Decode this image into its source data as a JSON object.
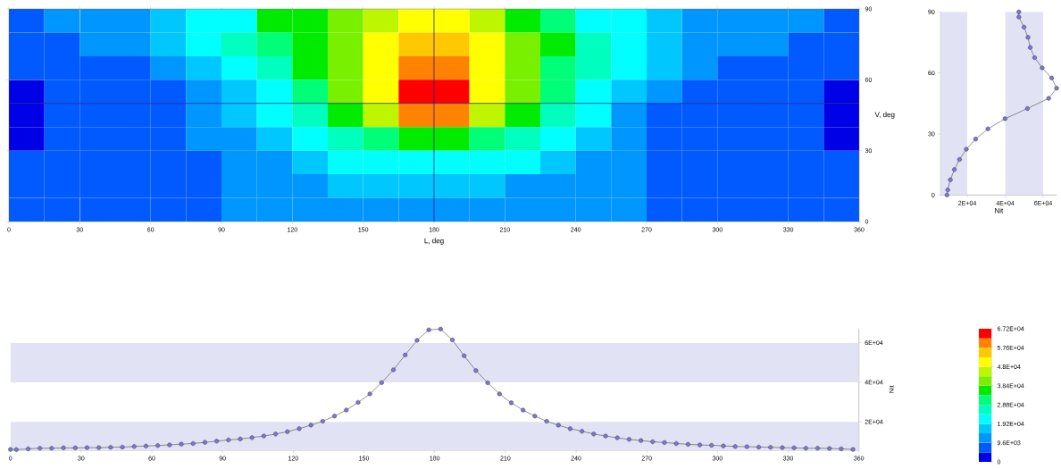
{
  "chart_data": [
    {
      "type": "heatmap",
      "xlabel": "L, deg",
      "ylabel": "V, deg",
      "x": [
        7.5,
        22.5,
        37.5,
        52.5,
        67.5,
        82.5,
        97.5,
        112.5,
        127.5,
        142.5,
        157.5,
        172.5,
        187.5,
        202.5,
        217.5,
        232.5,
        247.5,
        262.5,
        277.5,
        292.5,
        307.5,
        322.5,
        337.5,
        352.5
      ],
      "y": [
        85,
        75,
        65,
        55,
        45,
        35,
        25,
        15,
        5
      ],
      "cells": [
        [
          7200,
          12000,
          12000,
          12000,
          16800,
          21600,
          21600,
          36000,
          36000,
          40800,
          45600,
          50400,
          50400,
          45600,
          36000,
          31200,
          21600,
          21600,
          16800,
          12000,
          12000,
          12000,
          12000,
          7200
        ],
        [
          7200,
          7200,
          12000,
          12000,
          16800,
          21600,
          26400,
          31200,
          36000,
          40800,
          50400,
          55200,
          55200,
          50400,
          40800,
          36000,
          26400,
          21600,
          16800,
          12000,
          12000,
          12000,
          7200,
          7200
        ],
        [
          7200,
          7200,
          7200,
          7200,
          12000,
          16800,
          21600,
          26400,
          36000,
          40800,
          50400,
          60000,
          60000,
          50400,
          40800,
          31200,
          26400,
          21600,
          16800,
          12000,
          7200,
          7200,
          7200,
          7200
        ],
        [
          2400,
          7200,
          7200,
          7200,
          7200,
          12000,
          16800,
          21600,
          31200,
          40800,
          50400,
          64800,
          64800,
          50400,
          40800,
          31200,
          21600,
          16800,
          12000,
          7200,
          7200,
          7200,
          7200,
          2400
        ],
        [
          2400,
          7200,
          7200,
          7200,
          7200,
          12000,
          16800,
          21600,
          26400,
          36000,
          45600,
          60000,
          60000,
          45600,
          36000,
          26400,
          21600,
          12000,
          7200,
          7200,
          7200,
          7200,
          7200,
          2400
        ],
        [
          2400,
          7200,
          7200,
          7200,
          7200,
          12000,
          12000,
          16800,
          21600,
          26400,
          31200,
          36000,
          36000,
          31200,
          26400,
          21600,
          16800,
          12000,
          7200,
          7200,
          7200,
          7200,
          7200,
          2400
        ],
        [
          7200,
          7200,
          7200,
          7200,
          7200,
          7200,
          12000,
          12000,
          16800,
          21600,
          21600,
          21600,
          21600,
          21600,
          21600,
          16800,
          12000,
          12000,
          7200,
          7200,
          7200,
          7200,
          7200,
          7200
        ],
        [
          7200,
          7200,
          7200,
          7200,
          7200,
          7200,
          12000,
          12000,
          12000,
          16800,
          16800,
          16800,
          16800,
          16800,
          12000,
          12000,
          12000,
          12000,
          7200,
          7200,
          7200,
          7200,
          7200,
          7200
        ],
        [
          7200,
          7200,
          7200,
          7200,
          7200,
          7200,
          12000,
          12000,
          12000,
          12000,
          12000,
          12000,
          12000,
          12000,
          12000,
          12000,
          12000,
          12000,
          7200,
          7200,
          7200,
          7200,
          7200,
          7200
        ]
      ],
      "xlim": [
        0,
        360
      ],
      "ylim": [
        0,
        90
      ],
      "xticks": [
        0,
        30,
        60,
        90,
        120,
        150,
        180,
        210,
        240,
        270,
        300,
        330,
        360
      ],
      "yticks": [
        0,
        30,
        60,
        90
      ],
      "clim": [
        0,
        67200
      ],
      "cticks": [
        0,
        {
          "value": 9600,
          "label": "9.6E+03"
        },
        {
          "value": 19200,
          "label": "1.92E+04"
        },
        {
          "value": 28800,
          "label": "2.88E+04"
        },
        {
          "value": 38400,
          "label": "3.84E+04"
        },
        {
          "value": 48000,
          "label": "4.8E+04"
        },
        {
          "value": 57600,
          "label": "5.76E+04"
        },
        {
          "value": 67200,
          "label": "6.72E+04"
        }
      ],
      "ref_lines": [
        {
          "axis": "x",
          "value": 180,
          "color": "#14148c"
        },
        {
          "axis": "y",
          "value": 50,
          "color": "#14148c"
        }
      ]
    },
    {
      "type": "line",
      "xlabel": "Nit",
      "color": "#7b78c8",
      "marker": "circle",
      "x": [
        9300,
        9700,
        11100,
        13200,
        15900,
        19500,
        24400,
        30900,
        39900,
        51700,
        62900,
        67100,
        64500,
        59500,
        55500,
        53200,
        52000,
        49900,
        47200,
        47200
      ],
      "values": [
        0,
        2.5,
        7.5,
        12.5,
        17.5,
        22.5,
        27.5,
        32.5,
        37.5,
        42.5,
        47.5,
        52.5,
        57.5,
        62.5,
        67.5,
        72.5,
        77.5,
        82.5,
        87.5,
        90
      ],
      "xlim": [
        6000,
        67200
      ],
      "ylim": [
        0,
        90
      ],
      "xticks": [
        {
          "value": 20000,
          "label": "2E+04"
        },
        {
          "value": 40000,
          "label": "4E+04"
        },
        {
          "value": 60000,
          "label": "6E+04"
        }
      ],
      "yticks": [
        0,
        30,
        60,
        90
      ],
      "bands": [
        {
          "axis": "x",
          "from": 6000,
          "to": 20000,
          "color": "#e1e2f4"
        },
        {
          "axis": "x",
          "from": 40000,
          "to": 60000,
          "color": "#e1e2f4"
        }
      ]
    },
    {
      "type": "line",
      "ylabel": "Nit",
      "color": "#7b78c8",
      "marker": "circle",
      "x": [
        0,
        2.5,
        7.5,
        12.5,
        17.5,
        22.5,
        27.5,
        32.5,
        37.5,
        42.5,
        47.5,
        52.5,
        57.5,
        62.5,
        67.5,
        72.5,
        77.5,
        82.5,
        87.5,
        92.5,
        97.5,
        102.5,
        107.5,
        112.5,
        117.5,
        122.5,
        127.5,
        132.5,
        137.5,
        142.5,
        147.5,
        152.5,
        157.5,
        162.5,
        167.5,
        172.5,
        177.5,
        182.5,
        187.5,
        192.5,
        197.5,
        202.5,
        207.5,
        212.5,
        217.5,
        222.5,
        227.5,
        232.5,
        237.5,
        242.5,
        247.5,
        252.5,
        257.5,
        262.5,
        267.5,
        272.5,
        277.5,
        282.5,
        287.5,
        292.5,
        297.5,
        302.5,
        307.5,
        312.5,
        317.5,
        322.5,
        327.5,
        332.5,
        337.5,
        342.5,
        347.5,
        352.5,
        357.5
      ],
      "values": [
        6000,
        5900,
        6300,
        6600,
        6600,
        6800,
        6800,
        6900,
        6900,
        7100,
        7200,
        7500,
        7700,
        8000,
        8300,
        8700,
        9000,
        9600,
        10200,
        10800,
        11300,
        12000,
        12800,
        13800,
        15000,
        16500,
        18300,
        20300,
        22900,
        25900,
        29800,
        34100,
        39800,
        46300,
        53800,
        61200,
        66500,
        66900,
        61400,
        53400,
        45900,
        39700,
        34100,
        29600,
        25900,
        22900,
        20300,
        18300,
        16500,
        15200,
        13800,
        12800,
        11900,
        11100,
        10500,
        9900,
        9500,
        9000,
        8600,
        8300,
        8100,
        7800,
        7500,
        7400,
        7200,
        7100,
        6900,
        6800,
        6600,
        6600,
        6500,
        6300,
        6000
      ],
      "xlim": [
        0,
        360
      ],
      "ylim": [
        5600,
        67200
      ],
      "xticks": [
        0,
        30,
        60,
        90,
        120,
        150,
        180,
        210,
        240,
        270,
        300,
        330,
        360
      ],
      "yticks": [
        {
          "value": 20000,
          "label": "2E+04"
        },
        {
          "value": 40000,
          "label": "4E+04"
        },
        {
          "value": 60000,
          "label": "6E+04"
        }
      ],
      "bands": [
        {
          "axis": "y",
          "from": 5600,
          "to": 20000,
          "color": "#e1e2f4"
        },
        {
          "axis": "y",
          "from": 40000,
          "to": 60000,
          "color": "#e1e2f4"
        }
      ]
    }
  ]
}
